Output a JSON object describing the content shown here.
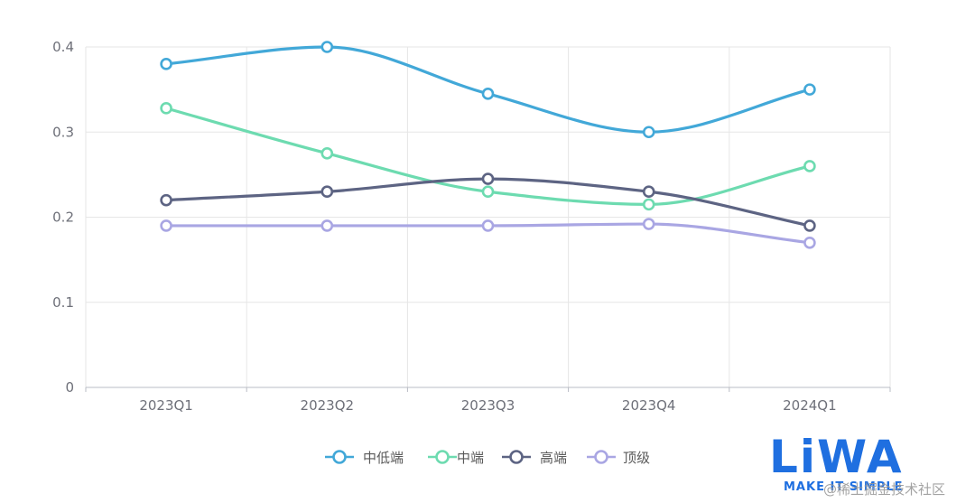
{
  "chart_data": {
    "type": "line",
    "categories": [
      "2023Q1",
      "2023Q2",
      "2023Q3",
      "2023Q4",
      "2024Q1"
    ],
    "series": [
      {
        "name": "中低端",
        "values": [
          0.38,
          0.4,
          0.345,
          0.3,
          0.35
        ],
        "color": "#42a8d8"
      },
      {
        "name": "中端",
        "values": [
          0.328,
          0.275,
          0.23,
          0.215,
          0.26
        ],
        "color": "#6ddbb0"
      },
      {
        "name": "高端",
        "values": [
          0.22,
          0.23,
          0.245,
          0.23,
          0.19
        ],
        "color": "#5d6483"
      },
      {
        "name": "顶级",
        "values": [
          0.19,
          0.19,
          0.19,
          0.192,
          0.17
        ],
        "color": "#a9a6e3"
      }
    ],
    "yticks": [
      "0",
      "0.1",
      "0.2",
      "0.3",
      "0.4"
    ],
    "ylim": [
      0,
      0.4
    ],
    "grid": true,
    "smooth": true,
    "legend_position": "bottom-center"
  },
  "logo": {
    "text": "LiWA",
    "tagline": "MAKE IT SIMPLE"
  },
  "watermark": "@稀土掘金技术社区"
}
